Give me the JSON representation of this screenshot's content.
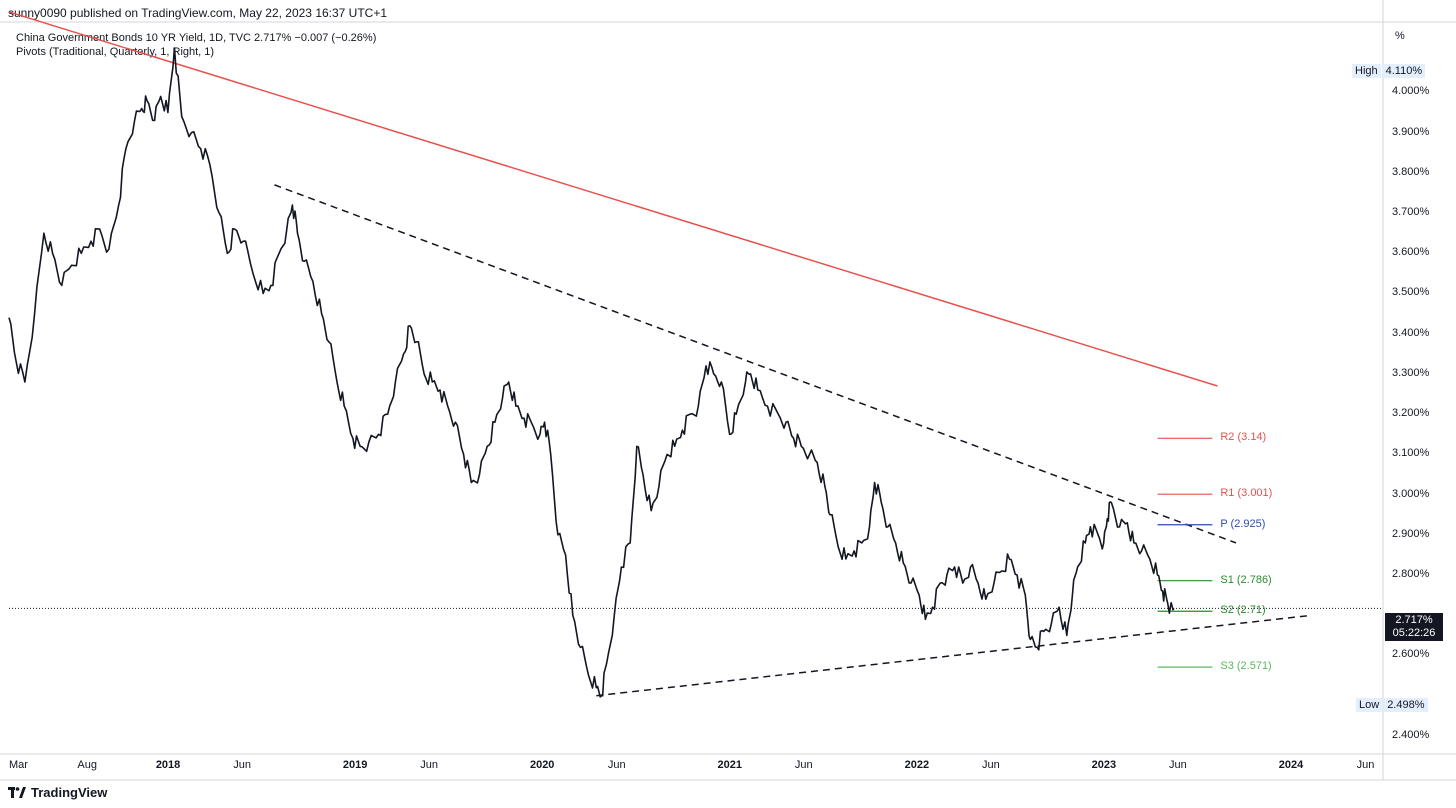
{
  "header": {
    "publish_line": "sunny0090 published on TradingView.com, May 22, 2023 16:37 UTC+1",
    "legend_symbol": "China Government Bonds 10 YR Yield, 1D, TVC  2.717%  −0.007 (−0.26%)",
    "legend_indicator": "Pivots (Traditional, Quarterly, 1, Right, 1)"
  },
  "footer": {
    "brand": "TradingView"
  },
  "colors": {
    "price_line": "#131722",
    "red_trendline": "#e8514d",
    "dashed_trendline": "#131722",
    "pivot_red": "#e8514d",
    "pivot_blue": "#2a4fa8",
    "pivot_green_dark": "#2e8a2e",
    "pivot_green_light": "#5cb85c",
    "tag_bg": "#e3effd"
  },
  "chart_data": {
    "type": "line",
    "title": "China Government Bonds 10 YR Yield, 1D, TVC",
    "ylabel": "%",
    "ylim": [
      2.37,
      4.17
    ],
    "xlim": [
      "2017-03-01",
      "2024-07-01"
    ],
    "y_ticks": [
      "4.000%",
      "3.900%",
      "3.800%",
      "3.700%",
      "3.600%",
      "3.500%",
      "3.400%",
      "3.300%",
      "3.200%",
      "3.100%",
      "3.000%",
      "2.900%",
      "2.800%",
      "2.600%",
      "2.400%"
    ],
    "y_tick_values": [
      4.0,
      3.9,
      3.8,
      3.7,
      3.6,
      3.5,
      3.4,
      3.3,
      3.2,
      3.1,
      3.0,
      2.9,
      2.8,
      2.6,
      2.4
    ],
    "x_ticks": [
      {
        "label": "Mar",
        "date": "2017-03-01",
        "bold": false
      },
      {
        "label": "Aug",
        "date": "2017-08-01",
        "bold": false
      },
      {
        "label": "2018",
        "date": "2018-01-01",
        "bold": true
      },
      {
        "label": "Jun",
        "date": "2018-06-01",
        "bold": false
      },
      {
        "label": "2019",
        "date": "2019-01-01",
        "bold": true
      },
      {
        "label": "Jun",
        "date": "2019-06-01",
        "bold": false
      },
      {
        "label": "2020",
        "date": "2020-01-01",
        "bold": true
      },
      {
        "label": "Jun",
        "date": "2020-06-01",
        "bold": false
      },
      {
        "label": "2021",
        "date": "2021-01-01",
        "bold": true
      },
      {
        "label": "Jun",
        "date": "2021-06-01",
        "bold": false
      },
      {
        "label": "2022",
        "date": "2022-01-01",
        "bold": true
      },
      {
        "label": "Jun",
        "date": "2022-06-01",
        "bold": false
      },
      {
        "label": "2023",
        "date": "2023-01-01",
        "bold": true
      },
      {
        "label": "Jun",
        "date": "2023-06-01",
        "bold": false
      },
      {
        "label": "2024",
        "date": "2024-01-01",
        "bold": true
      },
      {
        "label": "Jun",
        "date": "2024-06-01",
        "bold": false
      }
    ],
    "series": [
      {
        "values": [
          [
            "2017-03-01",
            3.44
          ],
          [
            "2017-03-15",
            3.33
          ],
          [
            "2017-04-01",
            3.28
          ],
          [
            "2017-04-20",
            3.45
          ],
          [
            "2017-05-08",
            3.65
          ],
          [
            "2017-05-25",
            3.6
          ],
          [
            "2017-06-12",
            3.52
          ],
          [
            "2017-07-01",
            3.57
          ],
          [
            "2017-07-20",
            3.6
          ],
          [
            "2017-08-08",
            3.63
          ],
          [
            "2017-08-25",
            3.66
          ],
          [
            "2017-09-12",
            3.61
          ],
          [
            "2017-10-01",
            3.72
          ],
          [
            "2017-10-15",
            3.86
          ],
          [
            "2017-11-01",
            3.93
          ],
          [
            "2017-11-15",
            3.96
          ],
          [
            "2017-11-25",
            3.98
          ],
          [
            "2017-12-10",
            3.93
          ],
          [
            "2017-12-22",
            3.99
          ],
          [
            "2018-01-05",
            3.95
          ],
          [
            "2018-01-18",
            4.11
          ],
          [
            "2018-02-01",
            3.94
          ],
          [
            "2018-02-20",
            3.9
          ],
          [
            "2018-03-10",
            3.86
          ],
          [
            "2018-03-28",
            3.82
          ],
          [
            "2018-04-15",
            3.7
          ],
          [
            "2018-05-01",
            3.6
          ],
          [
            "2018-05-15",
            3.66
          ],
          [
            "2018-06-01",
            3.63
          ],
          [
            "2018-06-20",
            3.55
          ],
          [
            "2018-07-10",
            3.5
          ],
          [
            "2018-07-25",
            3.52
          ],
          [
            "2018-08-10",
            3.6
          ],
          [
            "2018-08-25",
            3.66
          ],
          [
            "2018-09-05",
            3.72
          ],
          [
            "2018-09-15",
            3.65
          ],
          [
            "2018-09-28",
            3.58
          ],
          [
            "2018-10-15",
            3.53
          ],
          [
            "2018-11-01",
            3.45
          ],
          [
            "2018-11-15",
            3.38
          ],
          [
            "2018-12-01",
            3.28
          ],
          [
            "2018-12-15",
            3.22
          ],
          [
            "2019-01-01",
            3.14
          ],
          [
            "2019-01-15",
            3.12
          ],
          [
            "2019-02-01",
            3.13
          ],
          [
            "2019-02-20",
            3.15
          ],
          [
            "2019-03-10",
            3.2
          ],
          [
            "2019-03-25",
            3.28
          ],
          [
            "2019-04-10",
            3.35
          ],
          [
            "2019-04-22",
            3.42
          ],
          [
            "2019-05-05",
            3.38
          ],
          [
            "2019-05-20",
            3.3
          ],
          [
            "2019-06-05",
            3.28
          ],
          [
            "2019-06-20",
            3.26
          ],
          [
            "2019-07-05",
            3.22
          ],
          [
            "2019-07-20",
            3.18
          ],
          [
            "2019-08-05",
            3.1
          ],
          [
            "2019-08-20",
            3.03
          ],
          [
            "2019-09-05",
            3.05
          ],
          [
            "2019-09-20",
            3.12
          ],
          [
            "2019-10-05",
            3.18
          ],
          [
            "2019-10-20",
            3.24
          ],
          [
            "2019-11-01",
            3.28
          ],
          [
            "2019-11-15",
            3.22
          ],
          [
            "2019-12-01",
            3.19
          ],
          [
            "2019-12-15",
            3.18
          ],
          [
            "2020-01-01",
            3.15
          ],
          [
            "2020-01-10",
            3.18
          ],
          [
            "2020-01-22",
            3.1
          ],
          [
            "2020-02-05",
            2.9
          ],
          [
            "2020-02-20",
            2.85
          ],
          [
            "2020-03-05",
            2.7
          ],
          [
            "2020-03-20",
            2.62
          ],
          [
            "2020-04-05",
            2.55
          ],
          [
            "2020-04-20",
            2.52
          ],
          [
            "2020-04-30",
            2.5
          ],
          [
            "2020-05-10",
            2.58
          ],
          [
            "2020-05-25",
            2.7
          ],
          [
            "2020-06-08",
            2.82
          ],
          [
            "2020-06-25",
            2.88
          ],
          [
            "2020-07-08",
            3.12
          ],
          [
            "2020-07-20",
            3.05
          ],
          [
            "2020-08-05",
            2.96
          ],
          [
            "2020-08-20",
            3.02
          ],
          [
            "2020-09-05",
            3.1
          ],
          [
            "2020-09-20",
            3.12
          ],
          [
            "2020-10-05",
            3.16
          ],
          [
            "2020-10-20",
            3.2
          ],
          [
            "2020-11-05",
            3.22
          ],
          [
            "2020-11-20",
            3.32
          ],
          [
            "2020-12-05",
            3.3
          ],
          [
            "2020-12-20",
            3.28
          ],
          [
            "2021-01-05",
            3.15
          ],
          [
            "2021-01-18",
            3.2
          ],
          [
            "2021-02-05",
            3.28
          ],
          [
            "2021-02-15",
            3.3
          ],
          [
            "2021-03-01",
            3.26
          ],
          [
            "2021-03-20",
            3.22
          ],
          [
            "2021-04-10",
            3.2
          ],
          [
            "2021-04-25",
            3.18
          ],
          [
            "2021-05-10",
            3.14
          ],
          [
            "2021-05-25",
            3.12
          ],
          [
            "2021-06-10",
            3.1
          ],
          [
            "2021-06-25",
            3.08
          ],
          [
            "2021-07-10",
            3.02
          ],
          [
            "2021-07-20",
            2.95
          ],
          [
            "2021-08-05",
            2.87
          ],
          [
            "2021-08-20",
            2.84
          ],
          [
            "2021-09-05",
            2.86
          ],
          [
            "2021-09-20",
            2.88
          ],
          [
            "2021-10-05",
            2.92
          ],
          [
            "2021-10-15",
            3.03
          ],
          [
            "2021-10-28",
            2.98
          ],
          [
            "2021-11-10",
            2.92
          ],
          [
            "2021-11-25",
            2.88
          ],
          [
            "2021-12-10",
            2.83
          ],
          [
            "2021-12-25",
            2.78
          ],
          [
            "2022-01-10",
            2.75
          ],
          [
            "2022-01-22",
            2.69
          ],
          [
            "2022-02-05",
            2.72
          ],
          [
            "2022-02-20",
            2.78
          ],
          [
            "2022-03-05",
            2.8
          ],
          [
            "2022-03-20",
            2.82
          ],
          [
            "2022-04-05",
            2.78
          ],
          [
            "2022-04-20",
            2.82
          ],
          [
            "2022-05-05",
            2.78
          ],
          [
            "2022-05-20",
            2.74
          ],
          [
            "2022-06-05",
            2.78
          ],
          [
            "2022-06-20",
            2.81
          ],
          [
            "2022-07-05",
            2.84
          ],
          [
            "2022-07-20",
            2.8
          ],
          [
            "2022-08-05",
            2.75
          ],
          [
            "2022-08-15",
            2.64
          ],
          [
            "2022-08-28",
            2.62
          ],
          [
            "2022-09-10",
            2.66
          ],
          [
            "2022-09-25",
            2.68
          ],
          [
            "2022-10-10",
            2.72
          ],
          [
            "2022-10-25",
            2.65
          ],
          [
            "2022-11-05",
            2.75
          ],
          [
            "2022-11-15",
            2.82
          ],
          [
            "2022-11-30",
            2.88
          ],
          [
            "2022-12-10",
            2.92
          ],
          [
            "2022-12-25",
            2.9
          ],
          [
            "2023-01-05",
            2.88
          ],
          [
            "2023-01-12",
            2.94
          ],
          [
            "2023-01-20",
            2.98
          ],
          [
            "2023-02-05",
            2.92
          ],
          [
            "2023-02-20",
            2.93
          ],
          [
            "2023-03-05",
            2.88
          ],
          [
            "2023-03-20",
            2.86
          ],
          [
            "2023-04-05",
            2.84
          ],
          [
            "2023-04-20",
            2.8
          ],
          [
            "2023-04-30",
            2.76
          ],
          [
            "2023-05-08",
            2.74
          ],
          [
            "2023-05-15",
            2.72
          ],
          [
            "2023-05-22",
            2.717
          ]
        ]
      }
    ],
    "trendlines": [
      {
        "style": "solid",
        "color": "red",
        "points": [
          [
            "2017-03-01",
            4.2
          ],
          [
            "2023-08-15",
            3.27
          ]
        ]
      },
      {
        "style": "dashed",
        "color": "black",
        "points": [
          [
            "2018-08-01",
            3.77
          ],
          [
            "2023-09-20",
            2.88
          ]
        ]
      },
      {
        "style": "dashed",
        "color": "black",
        "points": [
          [
            "2020-04-20",
            2.5
          ],
          [
            "2024-02-15",
            2.7
          ]
        ]
      }
    ],
    "pivots": [
      {
        "label": "R2 (3.14)",
        "value": 3.14,
        "color": "red"
      },
      {
        "label": "R1 (3.001)",
        "value": 3.001,
        "color": "red"
      },
      {
        "label": "P (2.925)",
        "value": 2.925,
        "color": "blue"
      },
      {
        "label": "S1 (2.786)",
        "value": 2.786,
        "color": "green_dark"
      },
      {
        "label": "S2 (2.71)",
        "value": 2.71,
        "color": "green_dark"
      },
      {
        "label": "S3 (2.571)",
        "value": 2.571,
        "color": "green_light"
      }
    ],
    "pivot_range": [
      "2023-04-20",
      "2023-08-05"
    ],
    "high": {
      "label": "High",
      "value": 4.11,
      "value_text": "4.110%"
    },
    "low": {
      "label": "Low",
      "value": 2.498,
      "value_text": "2.498%"
    },
    "last": {
      "value": 2.717,
      "value_text": "2.717%",
      "countdown": "05:22:26"
    }
  }
}
